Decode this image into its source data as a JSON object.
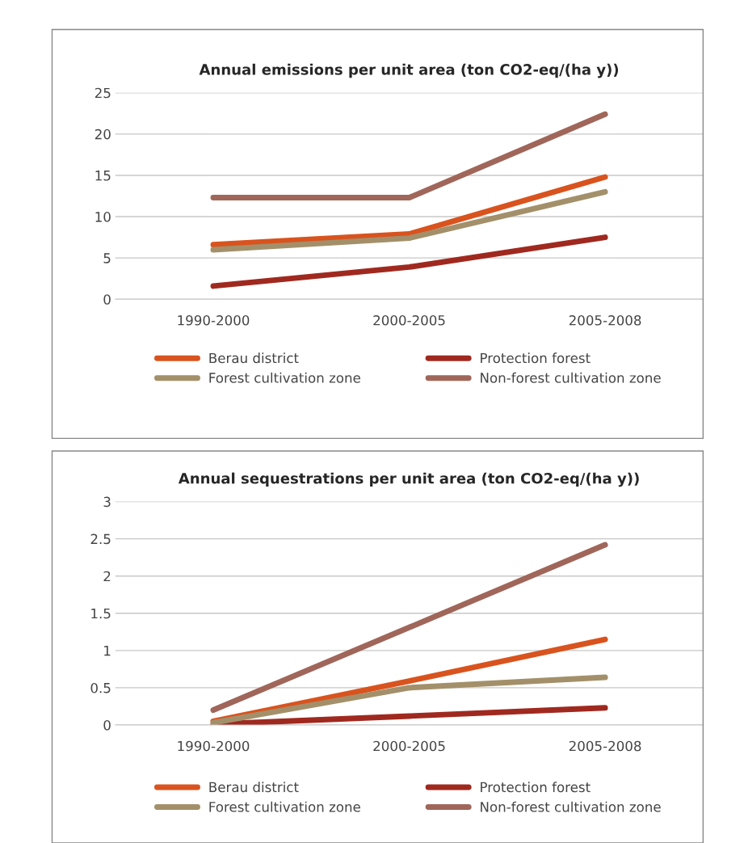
{
  "chart_data": [
    {
      "type": "line",
      "title": "Annual emissions per unit area (ton CO2-eq/(ha y))",
      "categories": [
        "1990-2000",
        "2000-2005",
        "2005-2008"
      ],
      "ylim": [
        0,
        25
      ],
      "yticks": [
        0,
        5,
        10,
        15,
        20,
        25
      ],
      "grid": "y",
      "legend": "bottom",
      "marker": "none",
      "line_style": "solid",
      "series": [
        {
          "name": "Berau district",
          "color": "#d9531e",
          "values": [
            6.6,
            7.9,
            14.8
          ]
        },
        {
          "name": "Protection forest",
          "color": "#a0291f",
          "values": [
            1.6,
            3.9,
            7.5
          ]
        },
        {
          "name": "Forest cultivation zone",
          "color": "#a3906a",
          "values": [
            6.0,
            7.4,
            13.0
          ]
        },
        {
          "name": "Non-forest cultivation zone",
          "color": "#a0665a",
          "values": [
            12.3,
            12.3,
            22.4
          ]
        }
      ]
    },
    {
      "type": "line",
      "title": "Annual sequestrations per unit area (ton CO2-eq/(ha y))",
      "categories": [
        "1990-2000",
        "2000-2005",
        "2005-2008"
      ],
      "ylim": [
        0,
        3
      ],
      "yticks": [
        0,
        0.5,
        1,
        1.5,
        2,
        2.5,
        3
      ],
      "grid": "y",
      "legend": "bottom",
      "marker": "none",
      "line_style": "solid",
      "series": [
        {
          "name": "Berau district",
          "color": "#d9531e",
          "values": [
            0.05,
            0.59,
            1.15
          ]
        },
        {
          "name": "Protection forest",
          "color": "#a0291f",
          "values": [
            0.01,
            0.12,
            0.23
          ]
        },
        {
          "name": "Forest cultivation zone",
          "color": "#a3906a",
          "values": [
            0.03,
            0.5,
            0.64
          ]
        },
        {
          "name": "Non-forest cultivation zone",
          "color": "#a0665a",
          "values": [
            0.2,
            1.31,
            2.42
          ]
        }
      ]
    }
  ]
}
